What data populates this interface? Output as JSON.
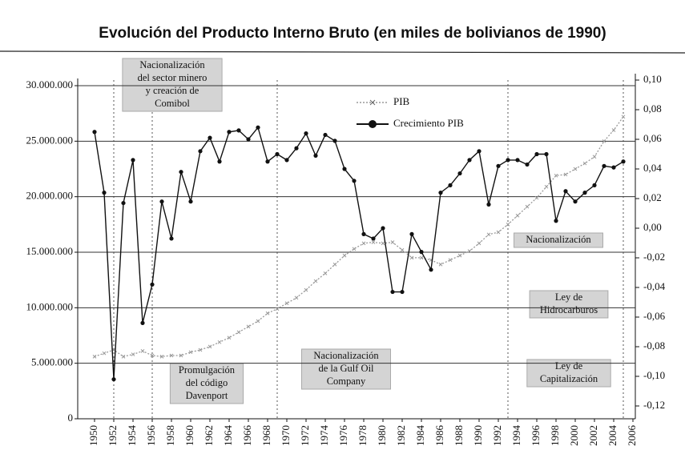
{
  "chart_data": {
    "type": "line",
    "title": "Evolución del Producto Interno Bruto (en miles de bolivianos de 1990)",
    "x": [
      1950,
      1951,
      1952,
      1953,
      1954,
      1955,
      1956,
      1957,
      1958,
      1959,
      1960,
      1961,
      1962,
      1963,
      1964,
      1965,
      1966,
      1967,
      1968,
      1969,
      1970,
      1971,
      1972,
      1973,
      1974,
      1975,
      1976,
      1977,
      1978,
      1979,
      1980,
      1981,
      1982,
      1983,
      1984,
      1985,
      1986,
      1987,
      1988,
      1989,
      1990,
      1991,
      1992,
      1993,
      1994,
      1995,
      1996,
      1997,
      1998,
      1999,
      2000,
      2001,
      2002,
      2003,
      2004,
      2005
    ],
    "series": [
      {
        "name": "PIB",
        "color": "#9a9a9a",
        "axis": "y",
        "values": [
          5600000,
          5900000,
          6200000,
          5600000,
          5800000,
          6100000,
          5700000,
          5600000,
          5700000,
          5700000,
          6000000,
          6200000,
          6500000,
          6900000,
          7300000,
          7800000,
          8300000,
          8800000,
          9500000,
          9900000,
          10400000,
          10900000,
          11600000,
          12400000,
          13100000,
          13900000,
          14700000,
          15300000,
          15800000,
          15900000,
          15800000,
          15900000,
          15200000,
          14500000,
          14500000,
          14300000,
          13900000,
          14300000,
          14700000,
          15100000,
          15800000,
          16600000,
          16800000,
          17500000,
          18300000,
          19100000,
          19900000,
          20900000,
          21900000,
          22000000,
          22500000,
          23000000,
          23600000,
          25000000,
          26000000,
          27200000
        ]
      },
      {
        "name": "Crecimiento PIB",
        "color": "#111111",
        "axis": "y2",
        "values": [
          0.065,
          0.024,
          -0.102,
          0.017,
          0.046,
          -0.064,
          -0.038,
          0.018,
          -0.007,
          0.038,
          0.018,
          0.052,
          0.061,
          0.045,
          0.065,
          0.066,
          0.06,
          0.068,
          0.045,
          0.05,
          0.046,
          0.054,
          0.064,
          0.049,
          0.063,
          0.059,
          0.04,
          0.032,
          -0.004,
          -0.007,
          0.0,
          -0.043,
          -0.043,
          -0.004,
          -0.016,
          -0.028,
          0.024,
          0.029,
          0.037,
          0.046,
          0.052,
          0.016,
          0.042,
          0.046,
          0.046,
          0.043,
          0.05,
          0.05,
          0.005,
          0.025,
          0.018,
          0.024,
          0.029,
          0.042,
          0.041,
          0.045
        ]
      }
    ],
    "xlim": [
      1948.25,
      2006.25
    ],
    "xticks": [
      1950,
      1952,
      1954,
      1956,
      1958,
      1960,
      1962,
      1964,
      1966,
      1968,
      1970,
      1972,
      1974,
      1976,
      1978,
      1980,
      1982,
      1984,
      1986,
      1988,
      1990,
      1992,
      1994,
      1996,
      1998,
      2000,
      2002,
      2004,
      2006
    ],
    "ylim": [
      0,
      30000000
    ],
    "yticks": [
      0,
      {
        "value": 5000000,
        "label": "5.000.000"
      },
      {
        "value": 10000000,
        "label": "10.000.000"
      },
      {
        "value": 15000000,
        "label": "15.000.000"
      },
      {
        "value": 20000000,
        "label": "20.000.000"
      },
      {
        "value": 25000000,
        "label": "25.000.000"
      },
      {
        "value": 30000000,
        "label": "30.000.000"
      }
    ],
    "y2lim": [
      -0.12,
      0.1
    ],
    "y2ticks": [
      {
        "value": 0.1,
        "label": "0,10"
      },
      {
        "value": 0.08,
        "label": "0,08"
      },
      {
        "value": 0.06,
        "label": "0,06"
      },
      {
        "value": 0.04,
        "label": "0,04"
      },
      {
        "value": 0.02,
        "label": "0,02"
      },
      {
        "value": 0.0,
        "label": "0,00"
      },
      {
        "value": -0.02,
        "label": "-0,02"
      },
      {
        "value": -0.04,
        "label": "-0,04"
      },
      {
        "value": -0.06,
        "label": "-0,06"
      },
      {
        "value": -0.08,
        "label": "-0,08"
      },
      {
        "value": -0.1,
        "label": "-0,10"
      },
      {
        "value": -0.12,
        "label": "-0,12"
      }
    ],
    "grid": true,
    "annotations": [
      {
        "lines": [
          "Nacionalización",
          "del sector minero",
          "y creación de",
          "Comibol"
        ]
      },
      {
        "lines": [
          "Promulgación",
          "del código",
          "Davenport"
        ]
      },
      {
        "lines": [
          "Nacionalización",
          "de la Gulf Oil",
          "Company"
        ]
      },
      {
        "lines": [
          "Nacionalización"
        ]
      },
      {
        "lines": [
          "Ley de",
          "Hidrocarburos"
        ]
      },
      {
        "lines": [
          "Ley de",
          "Capitalización"
        ]
      }
    ]
  }
}
